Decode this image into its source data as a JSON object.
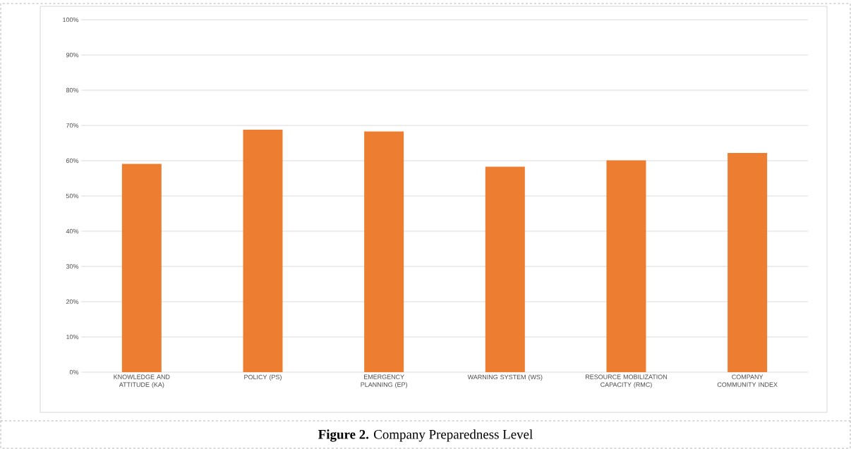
{
  "chart_data": {
    "type": "bar",
    "title": "**Figure 2.** Company Preparedness Level",
    "categories": [
      "KNOWLEDGE AND ATTITUDE (KA)",
      "POLICY (PS)",
      "EMERGENCY PLANNING (EP)",
      "WARNING SYSTEM (WS)",
      "RESOURCE MOBILIZATION CAPACITY (RMC)",
      "COMPANY COMMUNITY INDEX"
    ],
    "values": [
      59.1,
      68.8,
      68.3,
      58.3,
      60.1,
      62.2
    ],
    "color": "#ed7d31",
    "ylim": [
      0,
      100
    ],
    "yticks": [
      {
        "value": 0,
        "label": "0%"
      },
      {
        "value": 10,
        "label": "10%"
      },
      {
        "value": 20,
        "label": "20%"
      },
      {
        "value": 30,
        "label": "30%"
      },
      {
        "value": 40,
        "label": "40%"
      },
      {
        "value": 50,
        "label": "50%"
      },
      {
        "value": 60,
        "label": "60%"
      },
      {
        "value": 70,
        "label": "70%"
      },
      {
        "value": 80,
        "label": "80%"
      },
      {
        "value": 90,
        "label": "90%"
      },
      {
        "value": 100,
        "label": "100%"
      }
    ],
    "grid": "y"
  }
}
